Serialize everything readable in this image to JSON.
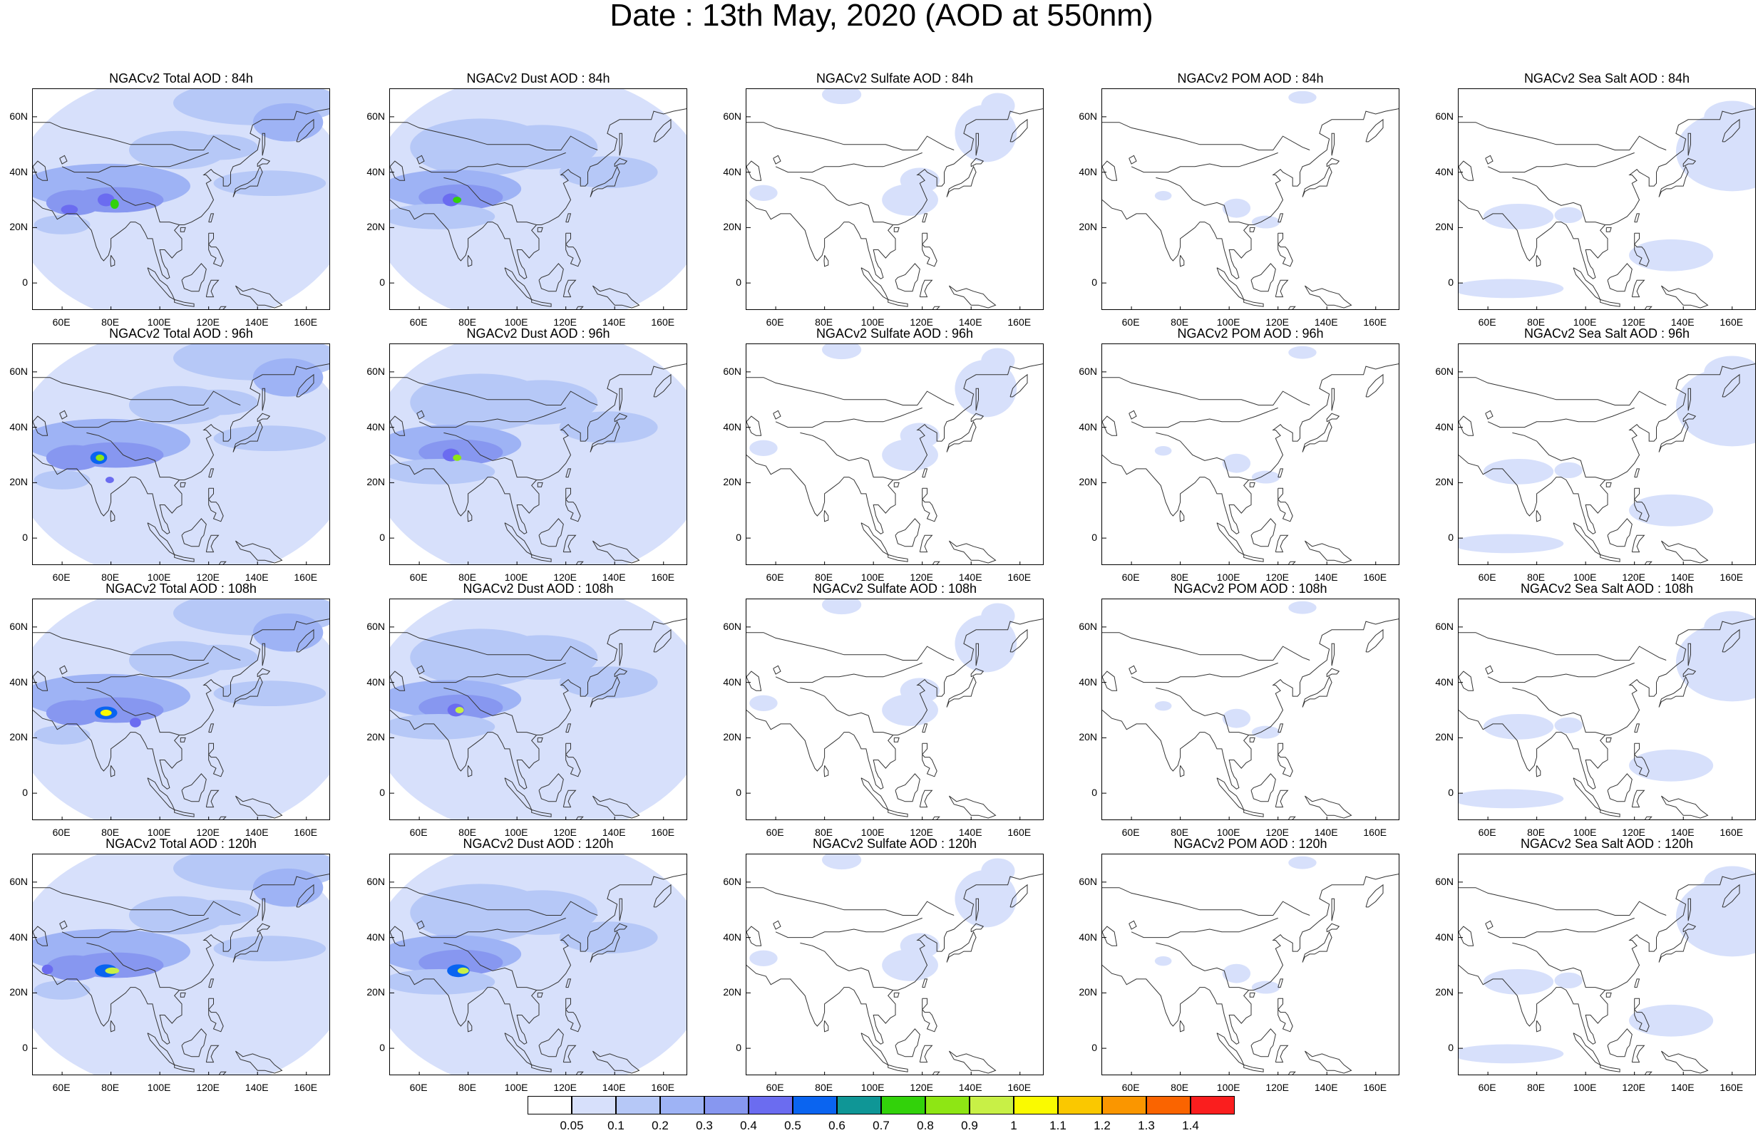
{
  "title": "Date : 13th May, 2020 (AOD at 550nm)",
  "panels": [
    {
      "title": "NGACv2 Total AOD : 84h",
      "field": "total",
      "hour": 84
    },
    {
      "title": "NGACv2 Dust AOD : 84h",
      "field": "dust",
      "hour": 84
    },
    {
      "title": "NGACv2 Sulfate AOD : 84h",
      "field": "sulfate",
      "hour": 84
    },
    {
      "title": "NGACv2 POM AOD : 84h",
      "field": "pom",
      "hour": 84
    },
    {
      "title": "NGACv2 Sea Salt AOD : 84h",
      "field": "seasalt",
      "hour": 84
    },
    {
      "title": "NGACv2 Total AOD : 96h",
      "field": "total",
      "hour": 96
    },
    {
      "title": "NGACv2 Dust AOD : 96h",
      "field": "dust",
      "hour": 96
    },
    {
      "title": "NGACv2 Sulfate AOD : 96h",
      "field": "sulfate",
      "hour": 96
    },
    {
      "title": "NGACv2 POM AOD : 96h",
      "field": "pom",
      "hour": 96
    },
    {
      "title": "NGACv2 Sea Salt AOD : 96h",
      "field": "seasalt",
      "hour": 96
    },
    {
      "title": "NGACv2 Total AOD : 108h",
      "field": "total",
      "hour": 108
    },
    {
      "title": "NGACv2 Dust AOD : 108h",
      "field": "dust",
      "hour": 108
    },
    {
      "title": "NGACv2 Sulfate AOD : 108h",
      "field": "sulfate",
      "hour": 108
    },
    {
      "title": "NGACv2 POM AOD : 108h",
      "field": "pom",
      "hour": 108
    },
    {
      "title": "NGACv2 Sea Salt AOD : 108h",
      "field": "seasalt",
      "hour": 108
    },
    {
      "title": "NGACv2 Total AOD : 120h",
      "field": "total",
      "hour": 120
    },
    {
      "title": "NGACv2 Dust AOD : 120h",
      "field": "dust",
      "hour": 120
    },
    {
      "title": "NGACv2 Sulfate AOD : 120h",
      "field": "sulfate",
      "hour": 120
    },
    {
      "title": "NGACv2 POM AOD : 120h",
      "field": "pom",
      "hour": 120
    },
    {
      "title": "NGACv2 Sea Salt  AOD : 120h",
      "field": "seasalt",
      "hour": 120
    }
  ],
  "map": {
    "lon_range": [
      48,
      170
    ],
    "lat_range": [
      -10,
      70
    ],
    "x_ticks": [
      "60E",
      "80E",
      "100E",
      "120E",
      "140E",
      "160E"
    ],
    "x_tick_values": [
      60,
      80,
      100,
      120,
      140,
      160
    ],
    "y_ticks": [
      "60N",
      "40N",
      "20N",
      "0"
    ],
    "y_tick_values": [
      60,
      40,
      20,
      0
    ]
  },
  "colorbar": {
    "labels": [
      "0.05",
      "0.1",
      "0.2",
      "0.3",
      "0.4",
      "0.5",
      "0.6",
      "0.7",
      "0.8",
      "0.9",
      "1",
      "1.1",
      "1.2",
      "1.3",
      "1.4"
    ],
    "colors": [
      "#ffffff",
      "#d7e0fb",
      "#b6c8f7",
      "#9eb3f5",
      "#8797f0",
      "#6b6cf0",
      "#0a64f0",
      "#0f9696",
      "#32d20a",
      "#8ee614",
      "#c8f046",
      "#fafa00",
      "#fac800",
      "#fa9600",
      "#fa6400",
      "#fa1e1e"
    ]
  },
  "colors": {
    "coastline": "#333333"
  }
}
